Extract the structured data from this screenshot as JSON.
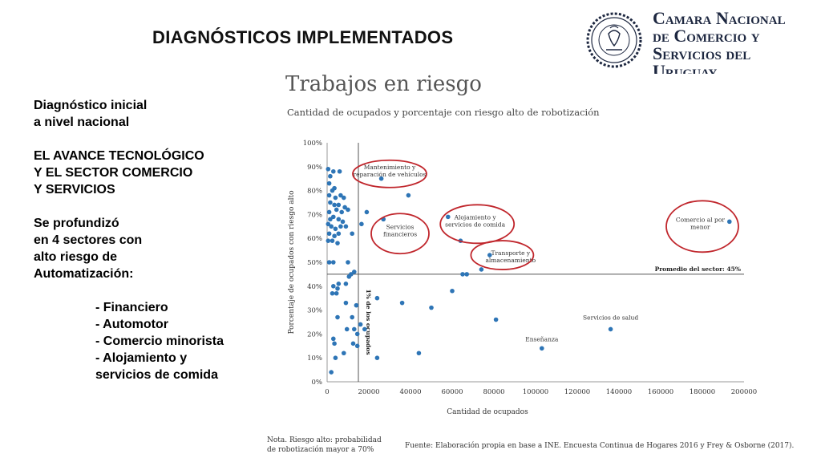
{
  "slide": {
    "title": "DIAGNÓSTICOS IMPLEMENTADOS",
    "left_text": {
      "intro": [
        "Diagnóstico inicial",
        "a nivel nacional"
      ],
      "theme": [
        "EL AVANCE TECNOLÓGICO",
        "Y EL SECTOR COMERCIO",
        "Y SERVICIOS"
      ],
      "deepened": [
        "Se profundizó",
        "en 4 sectores con",
        "alto riesgo de",
        "Automatización:"
      ],
      "sectors": [
        "- Financiero",
        "- Automotor",
        "- Comercio minorista",
        "- Alojamiento y",
        "servicios de comida"
      ]
    }
  },
  "logo": {
    "lines": [
      "Camara Nacional",
      "de Comercio y",
      "Servicios del",
      "Uruguay"
    ],
    "icon": "chamber-seal-icon",
    "color": "#1d2740"
  },
  "notes": {
    "left": [
      "Nota. Riesgo alto: probabilidad",
      "de robotización mayor a 70%"
    ],
    "right": "Fuente: Elaboración propia en base a INE. Encuesta Continua de Hogares 2016 y Frey & Osborne  (2017)."
  },
  "chart_data": {
    "type": "scatter",
    "title": "Trabajos en riesgo",
    "subtitle": "Cantidad de ocupados y porcentaje con riesgo alto de robotización",
    "xlabel": "Cantidad de ocupados",
    "ylabel": "Porcentaje de ocupados con riesgo alto",
    "xlim": [
      0,
      200000
    ],
    "ylim": [
      0,
      100
    ],
    "x_ticks": [
      0,
      20000,
      40000,
      60000,
      80000,
      100000,
      120000,
      140000,
      160000,
      180000,
      200000
    ],
    "x_tick_labels": [
      "0",
      "20000",
      "40000",
      "60000",
      "80000",
      "100000",
      "120000",
      "140000",
      "160000",
      "180000",
      "200000"
    ],
    "y_ticks": [
      0,
      10,
      20,
      30,
      40,
      50,
      60,
      70,
      80,
      90,
      100
    ],
    "y_tick_labels": [
      "0%",
      "10%",
      "20%",
      "30%",
      "40%",
      "50%",
      "60%",
      "70%",
      "80%",
      "90%",
      "100%"
    ],
    "grid": false,
    "point_color": "#2e75b6",
    "highlight_color": "#c0262c",
    "reference_lines": {
      "horizontal": {
        "y": 45,
        "label": "Promedio del sector: 45%"
      },
      "vertical": {
        "x": 15000,
        "label": "1% de los ocupados"
      }
    },
    "points": [
      [
        500,
        89
      ],
      [
        1500,
        86
      ],
      [
        3000,
        88
      ],
      [
        6000,
        88
      ],
      [
        1000,
        83
      ],
      [
        2500,
        80
      ],
      [
        3500,
        81
      ],
      [
        1000,
        78
      ],
      [
        4000,
        77
      ],
      [
        6500,
        78
      ],
      [
        8000,
        77
      ],
      [
        1500,
        75
      ],
      [
        3500,
        74
      ],
      [
        5500,
        74
      ],
      [
        8500,
        73
      ],
      [
        1000,
        71
      ],
      [
        4500,
        72
      ],
      [
        7000,
        71
      ],
      [
        10000,
        72
      ],
      [
        1500,
        68
      ],
      [
        3000,
        69
      ],
      [
        5500,
        68
      ],
      [
        7500,
        67
      ],
      [
        9000,
        65
      ],
      [
        500,
        66
      ],
      [
        2000,
        65
      ],
      [
        4000,
        64
      ],
      [
        6500,
        65
      ],
      [
        1000,
        62
      ],
      [
        3500,
        61
      ],
      [
        5500,
        62
      ],
      [
        500,
        59
      ],
      [
        2500,
        59
      ],
      [
        5000,
        58
      ],
      [
        1000,
        50
      ],
      [
        3000,
        50
      ],
      [
        10000,
        50
      ],
      [
        12000,
        62
      ],
      [
        11500,
        45
      ],
      [
        13000,
        46
      ],
      [
        10500,
        44
      ],
      [
        9000,
        41
      ],
      [
        3000,
        40
      ],
      [
        5500,
        41
      ],
      [
        5000,
        39
      ],
      [
        4500,
        37
      ],
      [
        2500,
        37
      ],
      [
        9000,
        33
      ],
      [
        14000,
        32
      ],
      [
        5000,
        27
      ],
      [
        12000,
        27
      ],
      [
        9500,
        22
      ],
      [
        13000,
        22
      ],
      [
        16000,
        24
      ],
      [
        18000,
        22
      ],
      [
        14500,
        20
      ],
      [
        3000,
        18
      ],
      [
        3500,
        16
      ],
      [
        12500,
        16
      ],
      [
        8000,
        12
      ],
      [
        4000,
        10
      ],
      [
        2000,
        4
      ],
      [
        14500,
        15
      ],
      [
        16500,
        66
      ],
      [
        19000,
        71
      ],
      [
        24000,
        35
      ],
      [
        24000,
        10
      ],
      [
        36000,
        33
      ],
      [
        44000,
        12
      ],
      [
        50000,
        31
      ],
      [
        60000,
        38
      ],
      [
        74000,
        47
      ],
      [
        81000,
        26
      ],
      [
        103000,
        14
      ],
      [
        136000,
        22
      ],
      [
        26000,
        85
      ],
      [
        39000,
        78
      ],
      [
        27000,
        68
      ],
      [
        58000,
        69
      ],
      [
        64000,
        59
      ],
      [
        65000,
        45
      ],
      [
        67000,
        45
      ],
      [
        78000,
        53
      ],
      [
        193000,
        67
      ]
    ],
    "annotations": [
      {
        "lines": [
          "Mantenimiento y",
          "reparación de vehículos"
        ],
        "x": 30000,
        "y": 89
      },
      {
        "lines": [
          "Servicios",
          "financieros"
        ],
        "x": 35000,
        "y": 64
      },
      {
        "lines": [
          "Alojamiento y",
          "servicios de comida"
        ],
        "x": 71000,
        "y": 68
      },
      {
        "lines": [
          "Transporte y",
          "almacenamiento"
        ],
        "x": 88000,
        "y": 53
      },
      {
        "lines": [
          "Comercio al por",
          "menor"
        ],
        "x": 179000,
        "y": 67
      },
      {
        "lines": [
          "Servicios de salud"
        ],
        "x": 136000,
        "y": 26
      },
      {
        "lines": [
          "Enseñanza"
        ],
        "x": 103000,
        "y": 17
      }
    ]
  }
}
